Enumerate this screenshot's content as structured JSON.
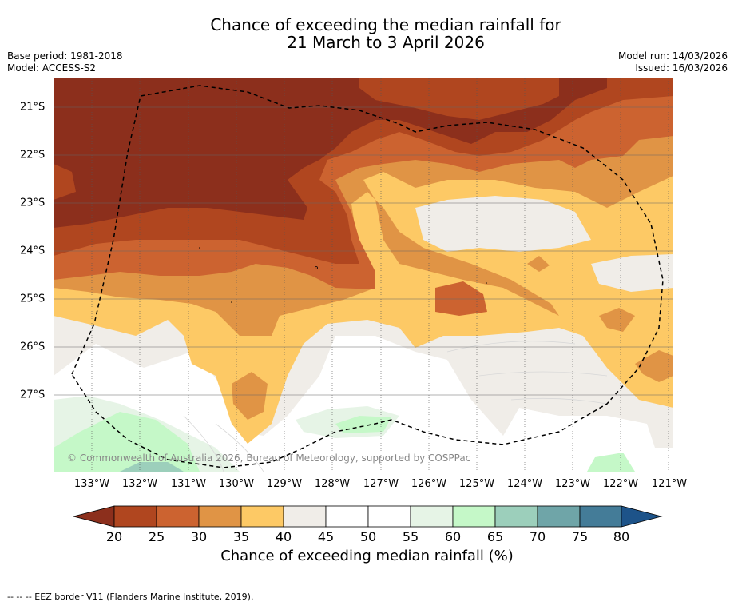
{
  "title": {
    "line1": "Chance of exceeding the median rainfall for",
    "line2": "21 March to 3 April 2026"
  },
  "meta": {
    "base_period": "Base period: 1981-2018",
    "model": "Model: ACCESS-S2",
    "model_run": "Model run: 14/03/2026",
    "issued": "Issued: 16/03/2026"
  },
  "map": {
    "copyright": "© Commonwealth of Australia 2026, Bureau of Meteorology, supported by COSPPac",
    "longitude_labels": [
      "133°W",
      "132°W",
      "131°W",
      "130°W",
      "129°W",
      "128°W",
      "127°W",
      "126°W",
      "125°W",
      "124°W",
      "123°W",
      "122°W",
      "121°W"
    ],
    "latitude_labels": [
      "21°S",
      "22°S",
      "23°S",
      "24°S",
      "25°S",
      "26°S",
      "27°S"
    ]
  },
  "colorbar": {
    "title": "Chance of exceeding median rainfall (%)",
    "ticks": [
      "20",
      "25",
      "30",
      "35",
      "40",
      "45",
      "50",
      "55",
      "60",
      "65",
      "70",
      "75",
      "80"
    ],
    "colors": [
      "#8c2f1c",
      "#b0461f",
      "#cc6330",
      "#e09445",
      "#fdc965",
      "#f0ede8",
      "#ffffff",
      "#ffffff",
      "#e6f4e6",
      "#c5f8c8",
      "#9ccfbb",
      "#6fa5a8",
      "#447c98",
      "#1d5389"
    ]
  },
  "footnote": "--  --  -- EEZ border V11 (Flanders Marine Institute, 2019)."
}
